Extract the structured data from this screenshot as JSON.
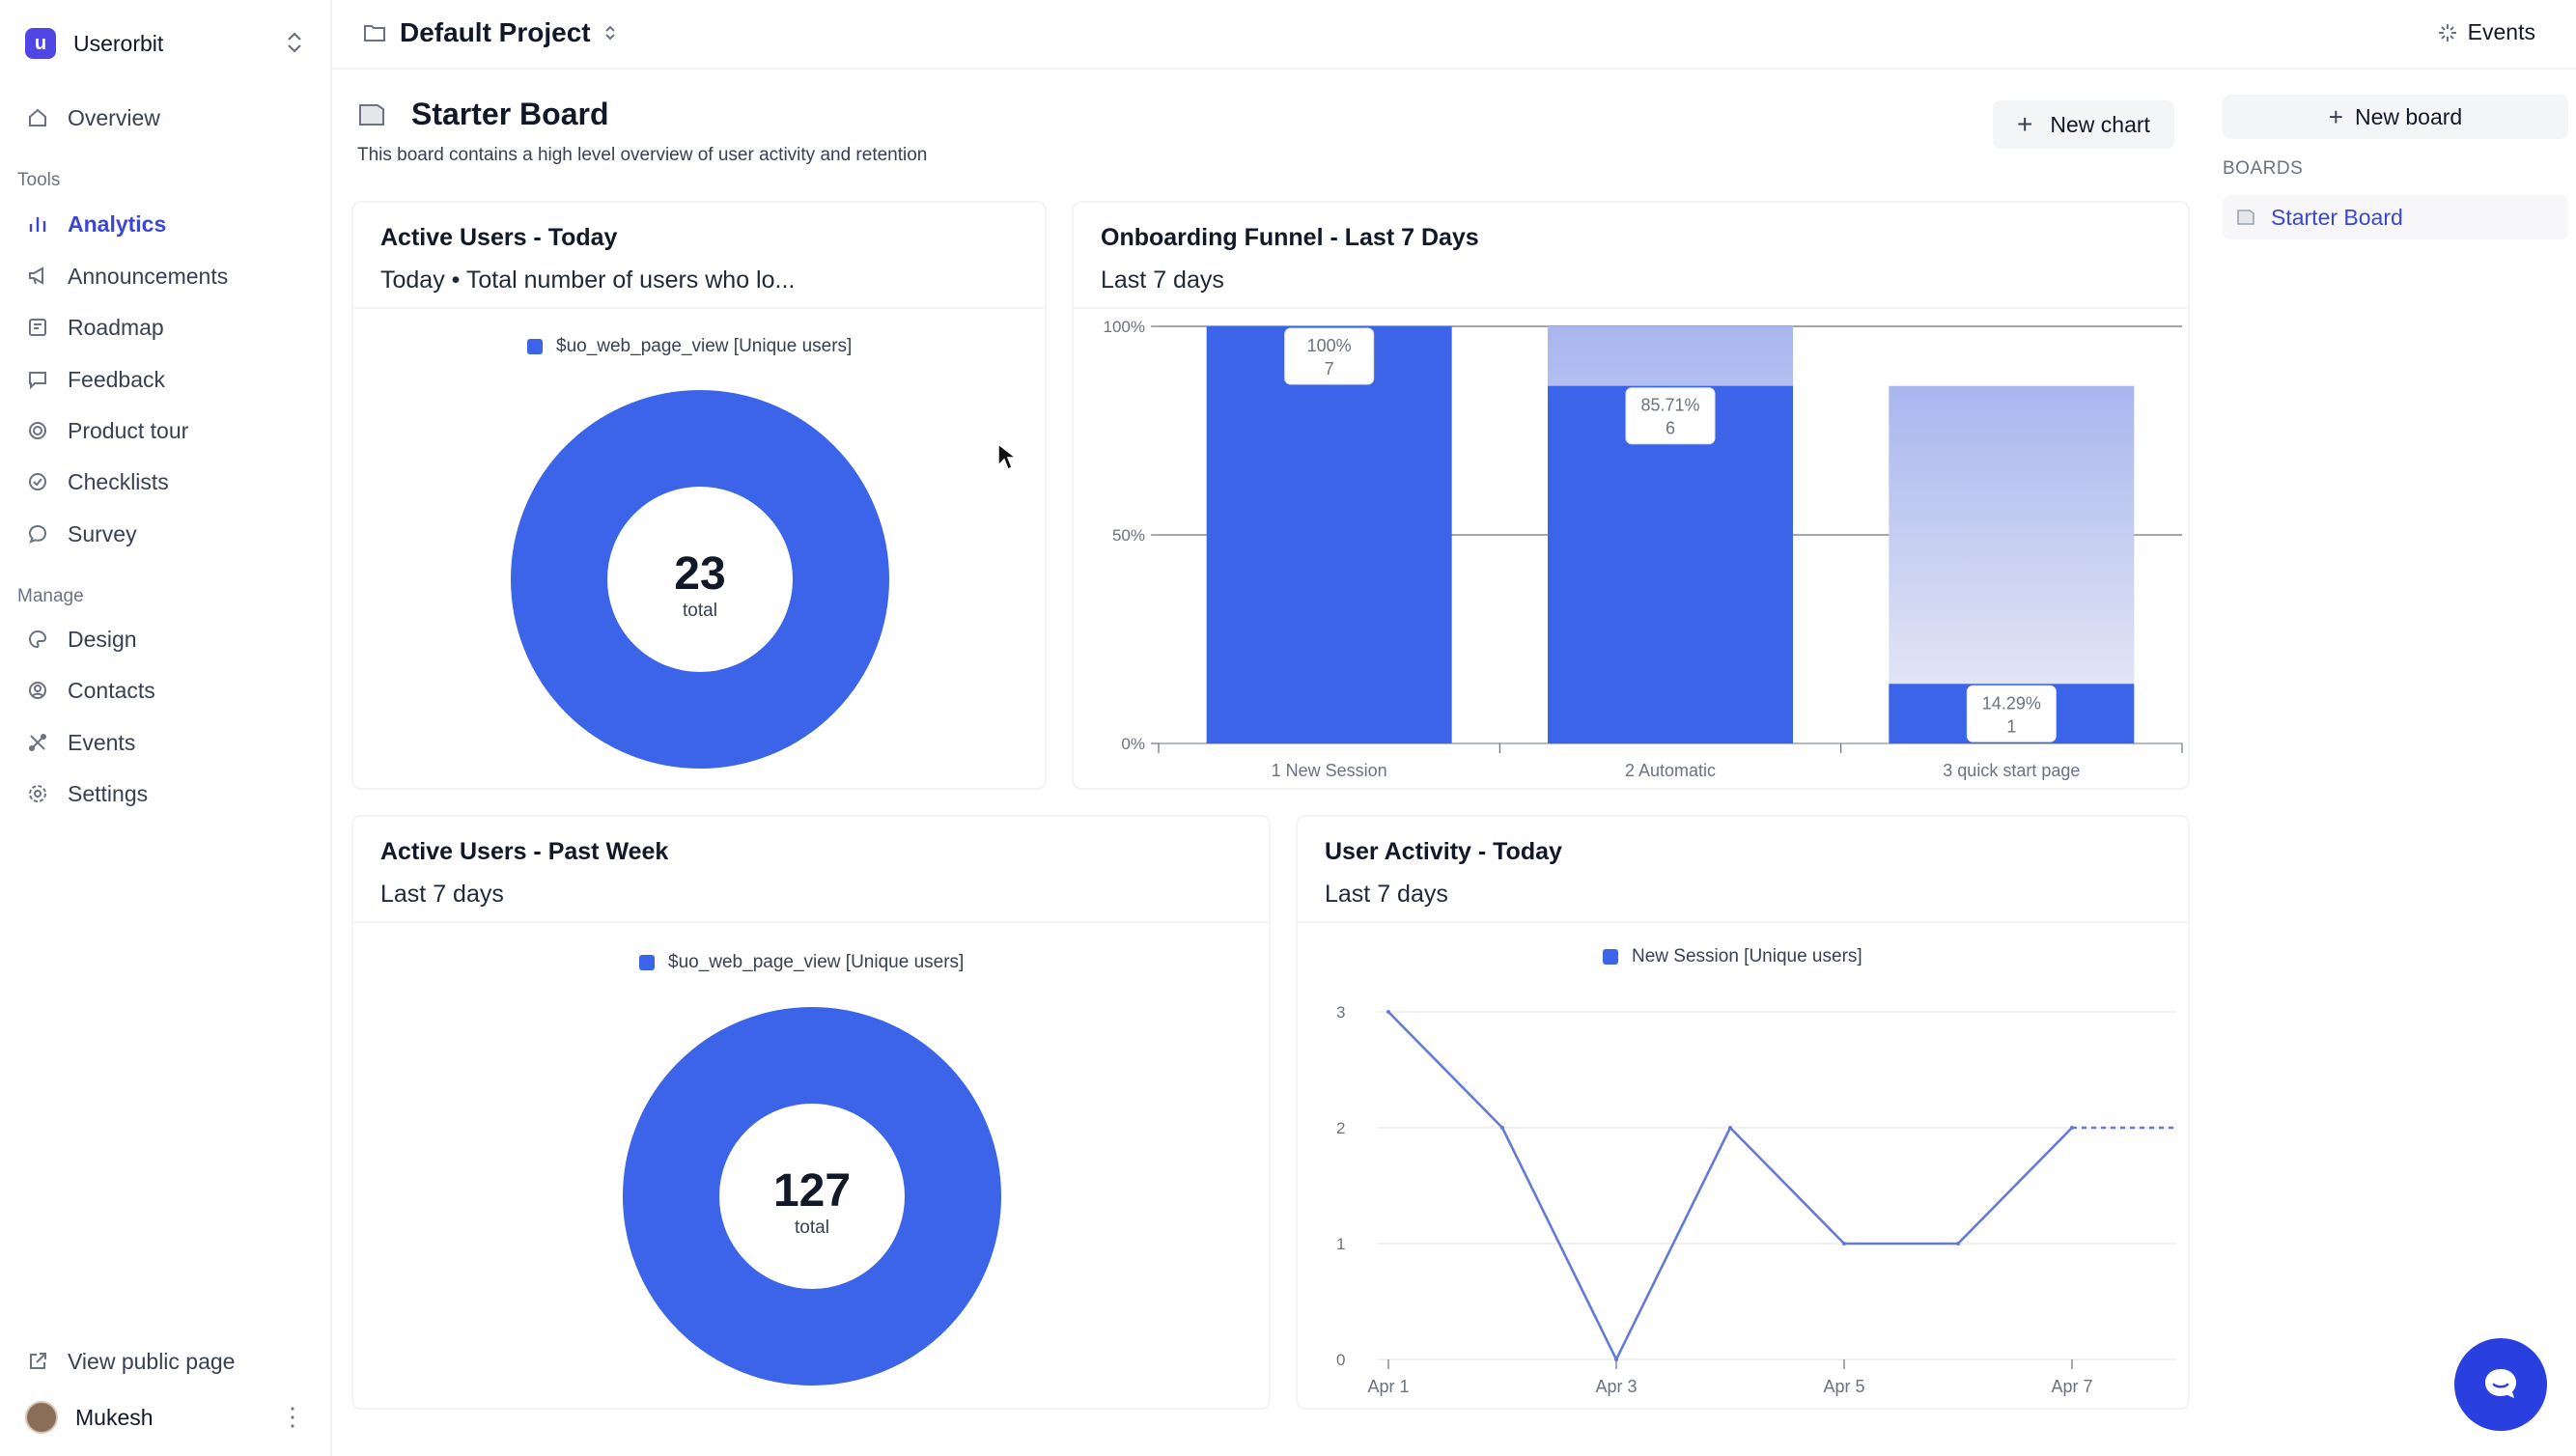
{
  "workspace": {
    "name": "Userorbit"
  },
  "sidebar": {
    "overview": "Overview",
    "tools_label": "Tools",
    "tools": [
      {
        "label": "Analytics",
        "icon": "bar-chart-icon",
        "active": true
      },
      {
        "label": "Announcements",
        "icon": "megaphone-icon"
      },
      {
        "label": "Roadmap",
        "icon": "roadmap-icon"
      },
      {
        "label": "Feedback",
        "icon": "message-square-icon"
      },
      {
        "label": "Product tour",
        "icon": "target-icon"
      },
      {
        "label": "Checklists",
        "icon": "check-circle-icon"
      },
      {
        "label": "Survey",
        "icon": "chat-bubble-icon"
      }
    ],
    "manage_label": "Manage",
    "manage": [
      {
        "label": "Design",
        "icon": "palette-icon"
      },
      {
        "label": "Contacts",
        "icon": "contacts-icon"
      },
      {
        "label": "Events",
        "icon": "events-icon"
      },
      {
        "label": "Settings",
        "icon": "gear-icon"
      }
    ],
    "view_public": "View public page",
    "user": "Mukesh"
  },
  "topbar": {
    "project": "Default Project",
    "events": "Events"
  },
  "board": {
    "title": "Starter Board",
    "description": "This board contains a high level overview of user activity and retention",
    "new_chart": "New chart"
  },
  "right_panel": {
    "new_board": "New board",
    "boards_label": "BOARDS",
    "boards": [
      "Starter Board"
    ]
  },
  "cards": {
    "active_today": {
      "title": "Active Users - Today",
      "subtitle": "Today • Total number of users who lo...",
      "legend": "$uo_web_page_view [Unique users]",
      "total": "23",
      "total_label": "total"
    },
    "funnel": {
      "title": "Onboarding Funnel - Last 7 Days",
      "subtitle": "Last 7 days"
    },
    "active_week": {
      "title": "Active Users - Past Week",
      "subtitle": "Last 7 days",
      "legend": "$uo_web_page_view [Unique users]",
      "total": "127",
      "total_label": "total"
    },
    "activity": {
      "title": "User Activity - Today",
      "subtitle": "Last 7 days",
      "legend": "New Session [Unique users]"
    }
  },
  "colors": {
    "accent": "#3b64e8",
    "active_nav": "#3b47d4",
    "chat": "#2a3fe0"
  },
  "chart_data": [
    {
      "type": "pie",
      "categories": [
        "$uo_web_page_view [Unique users]"
      ],
      "values": [
        23
      ],
      "annotations": [
        "23",
        "total"
      ]
    },
    {
      "type": "bar",
      "categories": [
        "1 New Session",
        "2 Automatic",
        "3 quick start page"
      ],
      "values": [
        100,
        85.71,
        14.29
      ],
      "counts": [
        7,
        6,
        1
      ],
      "prev_step": [
        100,
        100,
        85.71
      ],
      "labels": [
        "100%\n7",
        "85.71%\n6",
        "14.29%\n1"
      ],
      "ylim": [
        0,
        100
      ],
      "yticks": [
        "0%",
        "50%",
        "100%"
      ],
      "grid": true
    },
    {
      "type": "pie",
      "categories": [
        "$uo_web_page_view [Unique users]"
      ],
      "values": [
        127
      ],
      "annotations": [
        "127",
        "total"
      ]
    },
    {
      "type": "line",
      "series": [
        {
          "name": "New Session [Unique users]",
          "values": [
            3,
            2,
            0,
            2,
            1,
            1,
            2,
            2
          ]
        }
      ],
      "x": [
        "Apr 1",
        "Apr 2",
        "Apr 3",
        "Apr 4",
        "Apr 5",
        "Apr 6",
        "Apr 7",
        "Apr 8"
      ],
      "xticks": [
        "Apr 1",
        "Apr 3",
        "Apr 5",
        "Apr 7"
      ],
      "ylim": [
        0,
        3
      ],
      "yticks": [
        "0",
        "1",
        "2",
        "3"
      ],
      "dashed_last_segment": true,
      "grid": true
    }
  ]
}
